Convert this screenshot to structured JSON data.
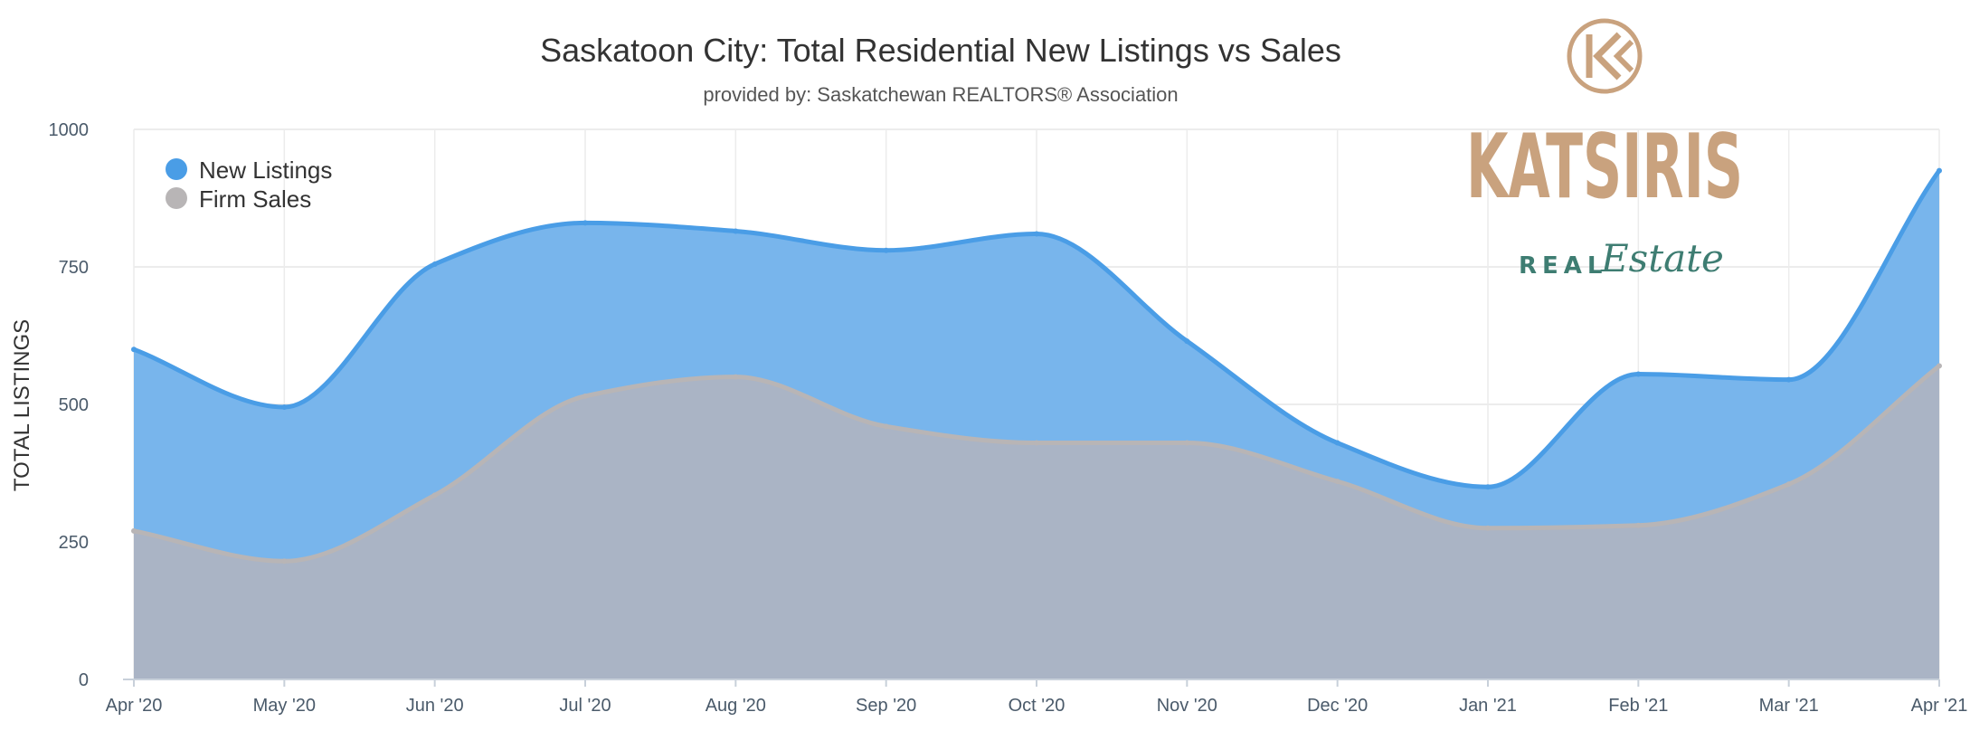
{
  "chart_data": {
    "type": "area",
    "title": "Saskatoon City: Total Residential New Listings vs Sales",
    "subtitle": "provided by: Saskatchewan REALTORS® Association",
    "ylabel": "TOTAL LISTINGS",
    "xlabel": "",
    "ylim": [
      0,
      1000
    ],
    "yticks": [
      "0",
      "250",
      "500",
      "750",
      "1000"
    ],
    "grid": true,
    "legend_position": "top-left",
    "categories": [
      "Apr '20",
      "May '20",
      "Jun '20",
      "Jul '20",
      "Aug '20",
      "Sep '20",
      "Oct '20",
      "Nov '20",
      "Dec '20",
      "Jan '21",
      "Feb '21",
      "Mar '21",
      "Apr '21"
    ],
    "series": [
      {
        "name": "New Listings",
        "color": "#4a9de6",
        "fill": "#78b5ec",
        "values": [
          600,
          495,
          755,
          830,
          815,
          780,
          810,
          615,
          430,
          350,
          555,
          545,
          925
        ]
      },
      {
        "name": "Firm Sales",
        "color": "#b8b5b6",
        "fill": "#aab4c5",
        "values": [
          270,
          215,
          335,
          515,
          550,
          460,
          430,
          430,
          360,
          275,
          280,
          355,
          570
        ]
      }
    ]
  },
  "logo": {
    "word": "KATSIRIS",
    "real": "REAL",
    "estate": "Estate",
    "color_gold": "#c9a27e",
    "color_green": "#3e7d72"
  }
}
